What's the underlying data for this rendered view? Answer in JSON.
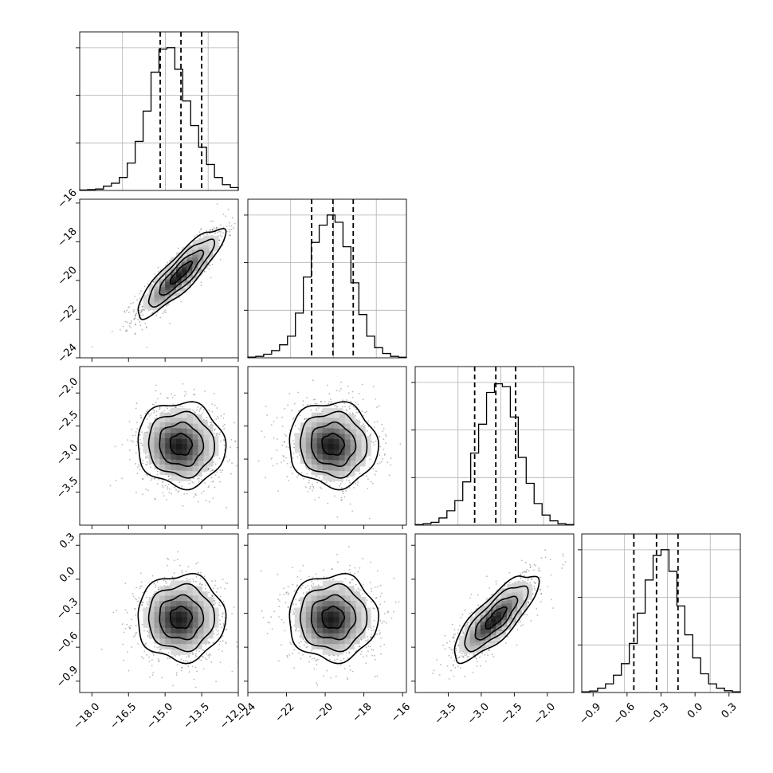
{
  "chart_data": {
    "type": "corner",
    "colors": {
      "line": "#000000",
      "grid": "#b0b0b0",
      "scatter": "#000000",
      "density": "#000000"
    },
    "grid": true,
    "parameters": [
      {
        "range": [
          -18.5,
          -12.0
        ],
        "ticks": [
          -18.0,
          -16.5,
          -15.0,
          -13.5,
          -12.0
        ],
        "tick_labels": [
          "−18.0",
          "−16.5",
          "−15.0",
          "−13.5",
          "−12.0"
        ],
        "mean": -14.35,
        "sd": 0.9,
        "quantiles": [
          -15.2,
          -14.35,
          -13.5
        ],
        "hist_rel": [
          0.003,
          0.006,
          0.01,
          0.03,
          0.05,
          0.09,
          0.19,
          0.34,
          0.55,
          0.82,
          0.98,
          0.99,
          0.84,
          0.62,
          0.45,
          0.3,
          0.18,
          0.09,
          0.04,
          0.02
        ]
      },
      {
        "range": [
          -24.0,
          -15.8
        ],
        "ticks": [
          -24,
          -22,
          -20,
          -18,
          -16
        ],
        "tick_labels": [
          "−24",
          "−22",
          "−20",
          "−18",
          "−16"
        ],
        "mean": -19.6,
        "sd": 1.15,
        "quantiles": [
          -20.7,
          -19.6,
          -18.55
        ],
        "hist_rel": [
          0.005,
          0.01,
          0.025,
          0.05,
          0.09,
          0.15,
          0.31,
          0.56,
          0.8,
          0.92,
          0.99,
          0.94,
          0.77,
          0.52,
          0.3,
          0.15,
          0.07,
          0.03,
          0.01,
          0.004
        ]
      },
      {
        "range": [
          -4.0,
          -1.6
        ],
        "ticks": [
          -3.5,
          -3.0,
          -2.5,
          -2.0
        ],
        "tick_labels": [
          "−3.5",
          "−3.0",
          "−2.5",
          "−2.0"
        ],
        "mean": -2.78,
        "sd": 0.32,
        "quantiles": [
          -3.1,
          -2.78,
          -2.48
        ],
        "hist_rel": [
          0.004,
          0.01,
          0.02,
          0.05,
          0.1,
          0.17,
          0.3,
          0.5,
          0.7,
          0.92,
          0.98,
          0.96,
          0.75,
          0.47,
          0.29,
          0.15,
          0.07,
          0.03,
          0.01,
          0.004
        ]
      },
      {
        "range": [
          -1.0,
          0.4
        ],
        "ticks": [
          -0.9,
          -0.6,
          -0.3,
          0.0,
          0.3
        ],
        "tick_labels": [
          "−0.9",
          "−0.6",
          "−0.3",
          "0.0",
          "0.3"
        ],
        "mean": -0.34,
        "sd": 0.19,
        "quantiles": [
          -0.54,
          -0.34,
          -0.15
        ],
        "hist_rel": [
          0.005,
          0.01,
          0.03,
          0.06,
          0.12,
          0.2,
          0.34,
          0.55,
          0.78,
          0.95,
          0.99,
          0.84,
          0.6,
          0.4,
          0.24,
          0.13,
          0.06,
          0.03,
          0.012,
          0.005
        ]
      }
    ],
    "correlations": {
      "1-0": 0.88,
      "2-0": -0.05,
      "2-1": -0.05,
      "3-0": 0.0,
      "3-1": 0.0,
      "3-2": 0.8
    }
  }
}
